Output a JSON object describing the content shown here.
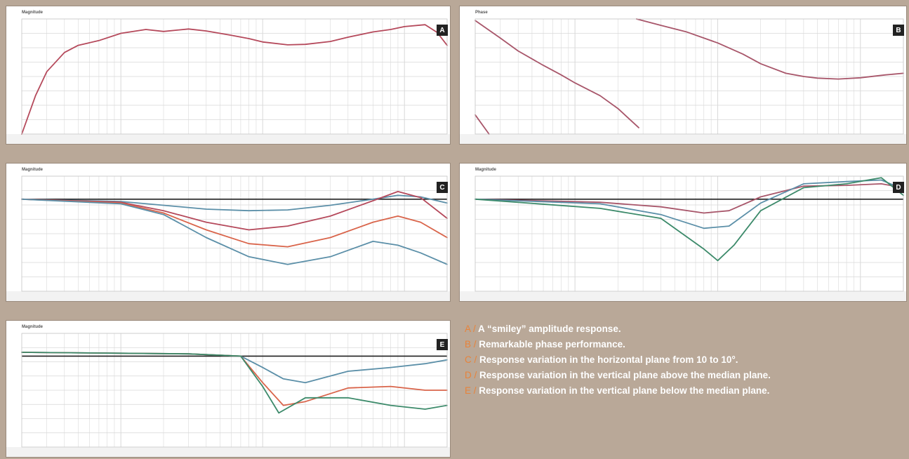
{
  "colors": {
    "background": "#b9a898",
    "plot_bg": "#ffffff",
    "grid": "#d8d8d8",
    "reference_line": "#1f1f1f",
    "badge_bg": "#222222",
    "caption_text": "#ffffff",
    "caption_letter": "#e8833a",
    "series": [
      "#b5495b",
      "#5b8fa8",
      "#d9644a",
      "#3c8a6a",
      "#a8566a"
    ]
  },
  "chart_data": [
    {
      "id": "A",
      "type": "line",
      "x_scale": "log",
      "xlim": [
        20,
        20000
      ],
      "ylim": [
        -16,
        8
      ],
      "grid": true,
      "series": [
        {
          "x": [
            20,
            25,
            30,
            40,
            50,
            70,
            100,
            150,
            200,
            300,
            400,
            600,
            800,
            1000,
            1500,
            2000,
            3000,
            4000,
            6000,
            8000,
            10000,
            14000,
            17000,
            20000
          ],
          "y": [
            -16,
            -8,
            -3,
            1,
            2.5,
            3.5,
            5,
            5.8,
            5.4,
            5.9,
            5.5,
            4.6,
            3.9,
            3.2,
            2.6,
            2.7,
            3.3,
            4.2,
            5.3,
            5.8,
            6.4,
            6.8,
            5.2,
            2.5
          ]
        }
      ],
      "reference": null,
      "title": "Magnitude",
      "ref_label": "",
      "badge": "A"
    },
    {
      "id": "B",
      "type": "line",
      "x_scale": "log",
      "xlim": [
        20,
        20000
      ],
      "ylim": [
        -180,
        180
      ],
      "grid": true,
      "series": [
        {
          "x": [
            20,
            30,
            40,
            60,
            80,
            100,
            150,
            200,
            280
          ],
          "y": [
            175,
            120,
            80,
            35,
            5,
            -20,
            -60,
            -100,
            -160
          ]
        },
        {
          "x": [
            20,
            25
          ],
          "y": [
            -120,
            -180
          ]
        },
        {
          "x": [
            270,
            400,
            600,
            1000,
            1500,
            2000,
            3000,
            4000,
            5000,
            7000,
            10000,
            15000,
            20000
          ],
          "y": [
            180,
            160,
            140,
            105,
            70,
            40,
            10,
            0,
            -5,
            -8,
            -4,
            5,
            10
          ]
        }
      ],
      "reference": null,
      "title": "Phase",
      "ref_label": "",
      "badge": "B"
    },
    {
      "id": "C",
      "type": "line",
      "x_scale": "log",
      "xlim": [
        20,
        20000
      ],
      "ylim": [
        -12,
        3
      ],
      "grid": true,
      "series": [
        {
          "x": [
            20,
            100,
            200,
            400,
            800,
            1500,
            3000,
            6000,
            9000,
            13000,
            20000
          ],
          "y": [
            0,
            -0.3,
            -0.8,
            -1.3,
            -1.5,
            -1.4,
            -0.8,
            0,
            0.5,
            0.3,
            -0.5
          ]
        },
        {
          "x": [
            20,
            100,
            200,
            400,
            800,
            1500,
            3000,
            6000,
            9000,
            13000,
            20000
          ],
          "y": [
            0,
            -0.4,
            -1.5,
            -3.0,
            -4.0,
            -3.5,
            -2.2,
            -0.2,
            1.0,
            0.2,
            -2.5
          ]
        },
        {
          "x": [
            20,
            100,
            200,
            400,
            800,
            1500,
            3000,
            6000,
            9000,
            13000,
            20000
          ],
          "y": [
            0,
            -0.5,
            -1.8,
            -4.0,
            -5.8,
            -6.2,
            -5.0,
            -3.0,
            -2.2,
            -3.0,
            -5.0
          ]
        },
        {
          "x": [
            20,
            100,
            200,
            400,
            800,
            1500,
            3000,
            6000,
            9000,
            13000,
            20000
          ],
          "y": [
            0,
            -0.6,
            -2.0,
            -5.0,
            -7.5,
            -8.5,
            -7.5,
            -5.5,
            -6.0,
            -7.0,
            -8.5
          ]
        }
      ],
      "reference": 0,
      "title": "Magnitude",
      "ref_label": "",
      "badge": "C"
    },
    {
      "id": "D",
      "type": "line",
      "x_scale": "log",
      "xlim": [
        20,
        20000
      ],
      "ylim": [
        -12,
        3
      ],
      "grid": true,
      "series": [
        {
          "x": [
            20,
            150,
            400,
            800,
            1200,
            2000,
            4000,
            8000,
            14000,
            20000
          ],
          "y": [
            0,
            -0.4,
            -1.0,
            -1.8,
            -1.5,
            0.3,
            1.7,
            1.8,
            2.0,
            1.5
          ]
        },
        {
          "x": [
            20,
            150,
            400,
            800,
            1200,
            2000,
            4000,
            8000,
            14000,
            20000
          ],
          "y": [
            0,
            -0.6,
            -2.0,
            -3.8,
            -3.5,
            -0.5,
            2.0,
            2.3,
            2.5,
            1.3
          ]
        },
        {
          "x": [
            20,
            150,
            400,
            800,
            1000,
            1300,
            2000,
            4000,
            8000,
            14000,
            20000
          ],
          "y": [
            0,
            -1.2,
            -2.5,
            -6.5,
            -8.0,
            -6.0,
            -1.5,
            1.5,
            2.0,
            2.8,
            0.5
          ]
        }
      ],
      "reference": 0,
      "title": "Magnitude",
      "ref_label": "",
      "badge": "D"
    },
    {
      "id": "E",
      "type": "line",
      "x_scale": "log",
      "xlim": [
        20,
        20000
      ],
      "ylim": [
        -12,
        3
      ],
      "grid": true,
      "series": [
        {
          "x": [
            20,
            300,
            700,
            1000,
            1400,
            2000,
            4000,
            8000,
            14000,
            20000
          ],
          "y": [
            0.5,
            0.3,
            0,
            -1.5,
            -3.0,
            -3.5,
            -2.0,
            -1.5,
            -1.0,
            -0.5
          ]
        },
        {
          "x": [
            20,
            300,
            700,
            1000,
            1400,
            2000,
            4000,
            8000,
            14000,
            20000
          ],
          "y": [
            0.5,
            0.3,
            0,
            -3.5,
            -6.5,
            -6.0,
            -4.2,
            -4.0,
            -4.5,
            -4.5
          ]
        },
        {
          "x": [
            20,
            300,
            700,
            1000,
            1300,
            2000,
            4000,
            8000,
            14000,
            20000
          ],
          "y": [
            0.5,
            0.3,
            0,
            -4.0,
            -7.5,
            -5.5,
            -5.5,
            -6.5,
            -7.0,
            -6.5
          ]
        }
      ],
      "reference": 0,
      "title": "Magnitude",
      "ref_label": "",
      "badge": "E"
    }
  ],
  "captions": [
    {
      "letter": "A /",
      "text": "A “smiley” amplitude response."
    },
    {
      "letter": "B /",
      "text": "Remarkable phase performance."
    },
    {
      "letter": "C /",
      "text": "Response variation in the horizontal plane from 10 to 10°."
    },
    {
      "letter": "D /",
      "text": "Response variation in the vertical plane above the median plane."
    },
    {
      "letter": "E /",
      "text": "Response variation in the vertical plane below the median plane."
    }
  ]
}
